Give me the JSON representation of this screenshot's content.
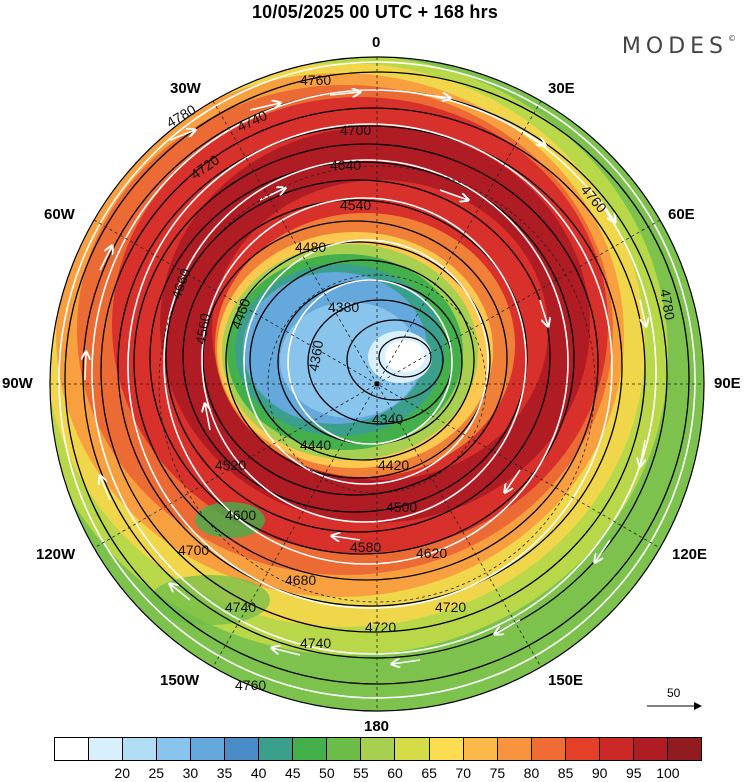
{
  "title": "10/05/2025  00 UTC  + 168 hrs",
  "brand": {
    "name": "MODES",
    "mark": "©"
  },
  "longitude_labels": {
    "lon_0": "0",
    "lon_30e": "30E",
    "lon_60e": "60E",
    "lon_90e": "90E",
    "lon_120e": "120E",
    "lon_150e": "150E",
    "lon_180": "180",
    "lon_150w": "150W",
    "lon_120w": "120W",
    "lon_90w": "90W",
    "lon_60w": "60W",
    "lon_30w": "30W"
  },
  "contour_labels": [
    "4760",
    "4780",
    "4740",
    "4720",
    "4700",
    "4640",
    "4540",
    "4480",
    "4460",
    "4380",
    "4360",
    "4340",
    "4660",
    "4560",
    "4420",
    "4440",
    "4520",
    "4500",
    "4580",
    "4620",
    "4680",
    "4740",
    "4720",
    "4700",
    "4760",
    "4780",
    "4600",
    "4740",
    "4720",
    "4760"
  ],
  "reference_vector": {
    "value": "50"
  },
  "colorbar": {
    "colors": [
      "#ffffff",
      "#d8f0fc",
      "#b0dcf4",
      "#88c4ec",
      "#64a8dc",
      "#4a8cc8",
      "#3aa08c",
      "#44b04c",
      "#6cbc48",
      "#a8d050",
      "#d4dc48",
      "#fcdc50",
      "#fcb848",
      "#f89440",
      "#f06c34",
      "#e44028",
      "#cc2828",
      "#b01c24",
      "#901c20"
    ],
    "tick_labels": [
      "20",
      "25",
      "30",
      "35",
      "40",
      "45",
      "50",
      "55",
      "60",
      "65",
      "70",
      "75",
      "80",
      "85",
      "90",
      "95",
      "100"
    ]
  },
  "field_colors": {
    "land_fill": "#b7e04e",
    "fast_jet": "#d42a20"
  }
}
